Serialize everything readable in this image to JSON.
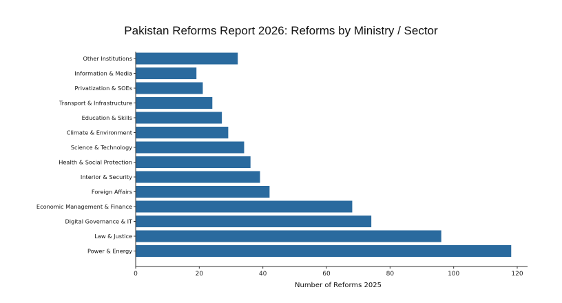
{
  "chart_data": {
    "type": "bar",
    "orientation": "horizontal",
    "title": "Pakistan Reforms Report 2026: Reforms by Ministry / Sector",
    "xlabel": "Number of Reforms 2025",
    "ylabel": "",
    "xlim": [
      0,
      123
    ],
    "xticks": [
      0,
      20,
      40,
      60,
      80,
      100,
      120
    ],
    "grid": false,
    "bar_color": "#2a6a9e",
    "categories": [
      "Other Institutions",
      "Information & Media",
      "Privatization & SOEs",
      "Transport & Infrastructure",
      "Education & Skills",
      "Climate & Environment",
      "Science & Technology",
      "Health & Social Protection",
      "Interior & Security",
      "Foreign Affairs",
      "Economic Management & Finance",
      "Digital Governance & IT",
      "Law & Justice",
      "Power & Energy"
    ],
    "values": [
      32,
      19,
      21,
      24,
      27,
      29,
      34,
      36,
      39,
      42,
      68,
      74,
      96,
      118
    ]
  }
}
